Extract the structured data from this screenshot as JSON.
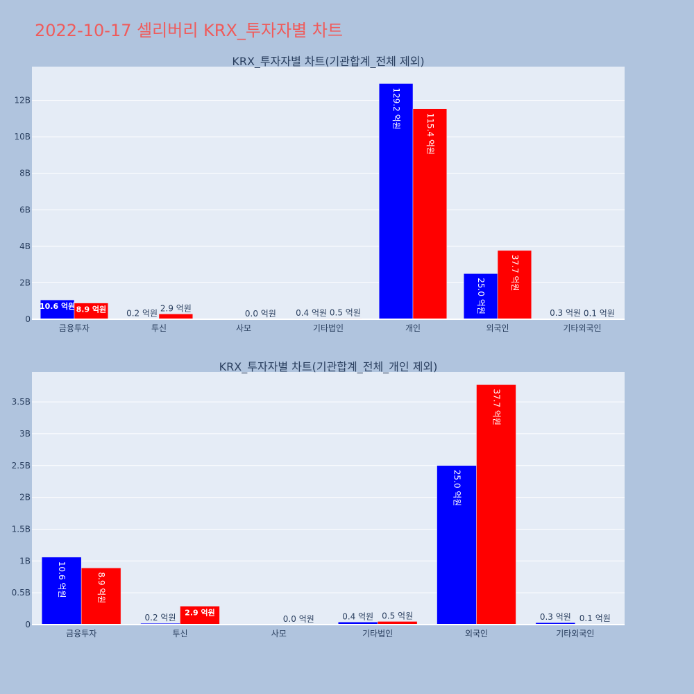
{
  "page": {
    "title": "2022-10-17 셀리버리 KRX_투자자별 차트"
  },
  "colors": {
    "buy": "#0000ff",
    "sell": "#ff0000",
    "plot_bg": "#e5ecf6",
    "page_bg": "#b0c4de"
  },
  "chart_data": [
    {
      "type": "bar",
      "title": "KRX_투자자별 차트(기관합계_전체 제외)",
      "categories": [
        "금융투자",
        "투신",
        "사모",
        "기타법인",
        "개인",
        "외국인",
        "기타외국인"
      ],
      "series": [
        {
          "color": "#0000ff",
          "values": [
            1.06,
            0.02,
            0.0,
            0.04,
            12.92,
            2.5,
            0.03
          ],
          "labels": [
            "10.6 억원",
            "0.2 억원",
            "",
            "0.4 억원",
            "129.2 억원",
            "25.0 억원",
            "0.3 억원"
          ]
        },
        {
          "color": "#ff0000",
          "values": [
            0.89,
            0.29,
            0.0,
            0.05,
            11.54,
            3.77,
            0.01
          ],
          "labels": [
            "8.9 억원",
            "2.9 억원",
            "0.0 억원",
            "0.5 억원",
            "115.4 억원",
            "37.7 억원",
            "0.1 억원"
          ]
        }
      ],
      "ylim": [
        0,
        13.85
      ],
      "yticks": [
        0,
        2,
        4,
        6,
        8,
        10,
        12
      ],
      "ytick_labels": [
        "0",
        "2B",
        "4B",
        "6B",
        "8B",
        "10B",
        "12B"
      ],
      "grid": true
    },
    {
      "type": "bar",
      "title": "KRX_투자자별 차트(기관합계_전체_개인 제외)",
      "categories": [
        "금융투자",
        "투신",
        "사모",
        "기타법인",
        "외국인",
        "기타외국인"
      ],
      "series": [
        {
          "color": "#0000ff",
          "values": [
            1.06,
            0.02,
            0.0,
            0.04,
            2.5,
            0.03
          ],
          "labels": [
            "10.6 억원",
            "0.2 억원",
            "",
            "0.4 억원",
            "25.0 억원",
            "0.3 억원"
          ]
        },
        {
          "color": "#ff0000",
          "values": [
            0.89,
            0.29,
            0.0,
            0.05,
            3.77,
            0.01
          ],
          "labels": [
            "8.9 억원",
            "2.9 억원",
            "0.0 억원",
            "0.5 억원",
            "37.7 억원",
            "0.1 억원"
          ]
        }
      ],
      "ylim": [
        0,
        3.97
      ],
      "yticks": [
        0,
        0.5,
        1,
        1.5,
        2,
        2.5,
        3,
        3.5
      ],
      "ytick_labels": [
        "0",
        "0.5B",
        "1B",
        "1.5B",
        "2B",
        "2.5B",
        "3B",
        "3.5B"
      ],
      "grid": true
    }
  ]
}
